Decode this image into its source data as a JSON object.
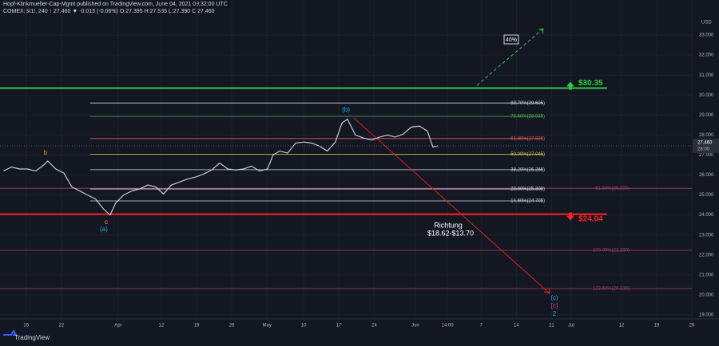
{
  "chart_data": {
    "type": "line",
    "title": "Hopf-Klinkmueller-Cap-Mgmt published on TradingView.com, June 04, 2021 09:32:00 UTC",
    "subtitle": "COMEX:SI1!, 240  ↑ 27.460 ▼ -0.015 (-0.06%) O:27.395 H:27.535 L:27.390 C:27.460",
    "currency": "USD",
    "brand": "TradingView",
    "xlim": [
      -5.2,
      132.4
    ],
    "ylim": [
      18.8,
      34.36
    ],
    "grid": true,
    "xticks": [
      {
        "value": 0,
        "label": "15"
      },
      {
        "value": 7,
        "label": "22"
      },
      {
        "value": 18.3,
        "label": "Apr"
      },
      {
        "value": 26.9,
        "label": "12"
      },
      {
        "value": 33.9,
        "label": "19"
      },
      {
        "value": 40.9,
        "label": "26"
      },
      {
        "value": 47.9,
        "label": "May"
      },
      {
        "value": 55.2,
        "label": "10"
      },
      {
        "value": 62.2,
        "label": "17"
      },
      {
        "value": 69.2,
        "label": "24"
      },
      {
        "value": 77.4,
        "label": "Jun"
      },
      {
        "value": 83.8,
        "label": "14:00"
      },
      {
        "value": 90.5,
        "label": "7"
      },
      {
        "value": 97.5,
        "label": "14"
      },
      {
        "value": 104.5,
        "label": "21"
      },
      {
        "value": 108.4,
        "label": "Jul"
      },
      {
        "value": 118.4,
        "label": "12"
      },
      {
        "value": 125.4,
        "label": "19"
      },
      {
        "value": 132.4,
        "label": "26"
      }
    ],
    "yticks": [
      {
        "value": 33,
        "label": "33.000"
      },
      {
        "value": 32,
        "label": "32.000"
      },
      {
        "value": 31,
        "label": "31.000"
      },
      {
        "value": 30,
        "label": "30.000"
      },
      {
        "value": 29,
        "label": "29.000"
      },
      {
        "value": 28,
        "label": "28.000"
      },
      {
        "value": 27,
        "label": "27.000"
      },
      {
        "value": 26,
        "label": "26.000"
      },
      {
        "value": 25,
        "label": "25.000"
      },
      {
        "value": 24,
        "label": "24.000"
      },
      {
        "value": 23,
        "label": "23.000"
      },
      {
        "value": 22,
        "label": "22.000"
      },
      {
        "value": 21,
        "label": "21.000"
      },
      {
        "value": 20,
        "label": "20.000"
      },
      {
        "value": 19,
        "label": "19.000"
      }
    ],
    "series": [
      {
        "name": "SI1!",
        "color": "#c8cbd4",
        "x": [
          -4.5,
          -2.9,
          -1.3,
          0.3,
          1.9,
          3.5,
          4.3,
          5.9,
          7.5,
          9.1,
          10.7,
          12.2,
          13.8,
          15.4,
          16.7,
          17.8,
          19.4,
          21.0,
          22.6,
          24.2,
          25.8,
          27.3,
          28.9,
          30.5,
          32.1,
          33.7,
          35.3,
          36.9,
          38.5,
          40.1,
          41.7,
          43.2,
          44.8,
          46.4,
          48.0,
          49.1,
          50.4,
          52.0,
          53.6,
          55.2,
          56.8,
          58.3,
          59.9,
          61.5,
          62.8,
          63.9,
          65.5,
          67.1,
          68.7,
          70.3,
          71.9,
          73.4,
          75.0,
          76.6,
          78.2,
          79.8,
          80.9,
          81.9
        ],
        "values": [
          26.2,
          26.4,
          26.3,
          26.3,
          26.2,
          26.5,
          26.7,
          26.3,
          26.1,
          25.4,
          25.2,
          25.0,
          24.8,
          24.3,
          24.0,
          24.6,
          25.0,
          25.2,
          25.3,
          25.5,
          25.4,
          25.05,
          25.5,
          25.65,
          25.8,
          25.9,
          26.05,
          26.25,
          26.6,
          26.3,
          26.25,
          26.3,
          26.45,
          26.2,
          26.3,
          27.0,
          27.2,
          27.1,
          27.6,
          27.65,
          27.6,
          27.45,
          27.2,
          27.65,
          28.6,
          28.8,
          28.0,
          27.85,
          27.75,
          27.9,
          28.0,
          27.9,
          28.05,
          28.4,
          28.45,
          28.2,
          27.4,
          27.46
        ]
      }
    ],
    "last_price": {
      "value": 27.46,
      "label": "27.460"
    },
    "countdown": "28:00",
    "fib_levels": [
      {
        "label": "88.70%(29.605)",
        "value": 29.605,
        "color": "#d1d4dc"
      },
      {
        "label": "78.60%(28.935)",
        "value": 28.935,
        "color": "#4caf50"
      },
      {
        "label": "61.80%(27.825)",
        "value": 27.825,
        "color": "#e05a5a"
      },
      {
        "label": "50.00%(27.045)",
        "value": 27.045,
        "color": "#e0d040"
      },
      {
        "label": "38.20%(26.265)",
        "value": 26.265,
        "color": "#d1d4dc"
      },
      {
        "label": "23.60%(25.300)",
        "value": 25.3,
        "color": "#d1d4dc"
      },
      {
        "label": "14.60%(24.705)",
        "value": 24.705,
        "color": "#d1d4dc"
      }
    ],
    "ext_levels": [
      {
        "label": "61.80%(25.335)",
        "value": 25.335,
        "color": "#a8416a"
      },
      {
        "label": "100.00%(22.230)",
        "value": 22.23,
        "color": "#a8416a"
      },
      {
        "label": "123.60%(20.315)",
        "value": 20.315,
        "color": "#a8416a"
      }
    ],
    "key_levels": [
      {
        "label": "$30.35",
        "value": 30.35,
        "color": "#2ecc40"
      },
      {
        "label": "$24.04",
        "value": 24.04,
        "color": "#ff2020"
      }
    ],
    "annotations": [
      "b",
      "c",
      "(a)",
      "(b)",
      "(c)",
      "[c]",
      "2",
      "Richtung",
      "$18.62-$13.70",
      "40%"
    ]
  }
}
